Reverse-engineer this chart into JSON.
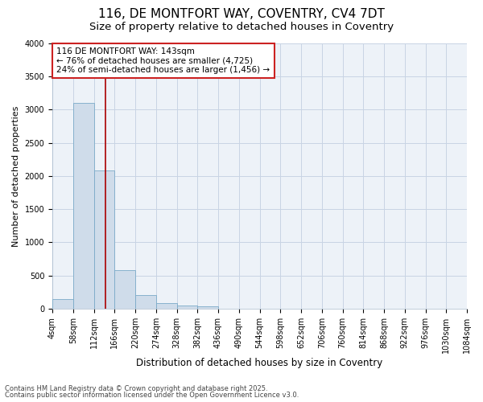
{
  "title": "116, DE MONTFORT WAY, COVENTRY, CV4 7DT",
  "subtitle": "Size of property relative to detached houses in Coventry",
  "xlabel": "Distribution of detached houses by size in Coventry",
  "ylabel": "Number of detached properties",
  "bar_edges": [
    4,
    58,
    112,
    166,
    220,
    274,
    328,
    382,
    436,
    490,
    544,
    598,
    652,
    706,
    760,
    814,
    868,
    922,
    976,
    1030,
    1084
  ],
  "bar_heights": [
    150,
    3100,
    2080,
    580,
    210,
    80,
    50,
    30,
    0,
    0,
    0,
    0,
    0,
    0,
    0,
    0,
    0,
    0,
    0,
    0
  ],
  "bar_color": "#cfdcea",
  "bar_edge_color": "#7aaac8",
  "vline_x": 143,
  "vline_color": "#aa0000",
  "annotation_text": "116 DE MONTFORT WAY: 143sqm\n← 76% of detached houses are smaller (4,725)\n24% of semi-detached houses are larger (1,456) →",
  "annotation_box_color": "#cc2222",
  "ylim": [
    0,
    4000
  ],
  "xlim": [
    4,
    1084
  ],
  "grid_color": "#c8d4e4",
  "bg_color": "#edf2f8",
  "footer_line1": "Contains HM Land Registry data © Crown copyright and database right 2025.",
  "footer_line2": "Contains public sector information licensed under the Open Government Licence v3.0.",
  "title_fontsize": 11,
  "subtitle_fontsize": 9.5,
  "tick_fontsize": 7,
  "ylabel_fontsize": 8,
  "xlabel_fontsize": 8.5,
  "footer_fontsize": 6,
  "ann_fontsize": 7.5
}
